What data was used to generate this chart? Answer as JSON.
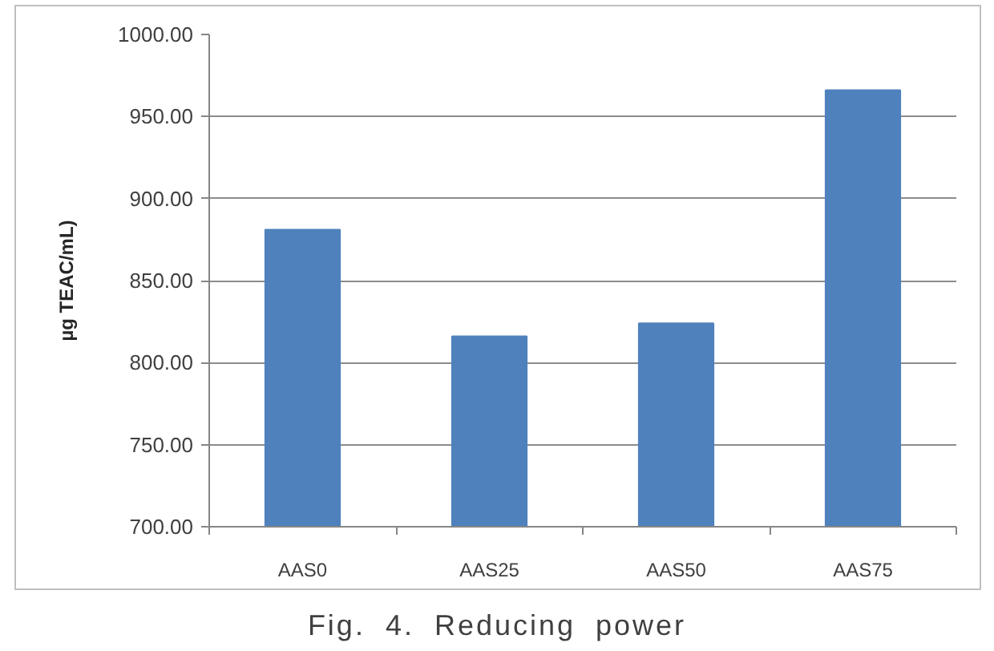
{
  "chart_data": {
    "type": "bar",
    "ylabel": "µg TEAC/mL)",
    "categories": [
      "AAS0",
      "AAS25",
      "AAS50",
      "AAS75"
    ],
    "values": [
      881,
      816,
      824,
      966
    ],
    "color": "#4f81bd",
    "ylim": [
      700,
      1000
    ],
    "yticks": [
      {
        "value": 700,
        "label": "700.00"
      },
      {
        "value": 750,
        "label": "750.00"
      },
      {
        "value": 800,
        "label": "800.00"
      },
      {
        "value": 850,
        "label": "850.00"
      },
      {
        "value": 900,
        "label": "900.00"
      },
      {
        "value": 950,
        "label": "950.00"
      },
      {
        "value": 1000,
        "label": "1000.00"
      }
    ],
    "grid": "y",
    "annotations": [
      "Fig. 4. Reducing power"
    ]
  }
}
